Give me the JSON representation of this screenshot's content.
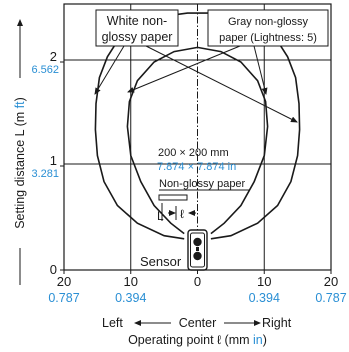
{
  "chart_data": {
    "type": "line",
    "xlabel": "Operating point ℓ (mm in)",
    "xlabel_parts": {
      "main": "Operating point ℓ (mm ",
      "unit": "in",
      "close": ")"
    },
    "ylabel": "Setting distance L (m ft)",
    "ylabel_parts": {
      "main": "Setting distance L (m ",
      "unit": "ft",
      "close": ")"
    },
    "xlim": [
      -20,
      20
    ],
    "ylim": [
      0,
      2.5
    ],
    "x_ticks": [
      {
        "value": -20,
        "label": "20",
        "label_in": "0.787"
      },
      {
        "value": -10,
        "label": "10",
        "label_in": "0.394"
      },
      {
        "value": 0,
        "label": "0",
        "label_in": ""
      },
      {
        "value": 10,
        "label": "10",
        "label_in": "0.394"
      },
      {
        "value": 20,
        "label": "20",
        "label_in": "0.787"
      }
    ],
    "y_ticks": [
      {
        "value": 0,
        "label": "0",
        "label_ft": ""
      },
      {
        "value": 1,
        "label": "1",
        "label_ft": "3.281"
      },
      {
        "value": 2,
        "label": "2",
        "label_ft": "6.562"
      }
    ],
    "direction_labels": {
      "left": "Left",
      "center": "Center",
      "right": "Right"
    },
    "series": [
      {
        "name": "White non-glossy paper",
        "x": [
          -2,
          -5,
          -9,
          -12,
          -14,
          -15,
          -15.3,
          -15.2,
          -14.7,
          -13.5,
          -11.5,
          -8.5,
          -5,
          -1.5,
          0,
          1.5,
          5,
          8.5,
          11.5,
          13.5,
          14.7,
          15.2,
          15.3,
          15,
          14,
          12,
          9,
          5,
          2
        ],
        "y": [
          0.3,
          0.33,
          0.45,
          0.62,
          0.85,
          1.1,
          1.35,
          1.6,
          1.85,
          2.05,
          2.25,
          2.38,
          2.44,
          2.47,
          2.47,
          2.47,
          2.44,
          2.38,
          2.25,
          2.05,
          1.85,
          1.6,
          1.35,
          1.1,
          0.85,
          0.62,
          0.45,
          0.33,
          0.3
        ]
      },
      {
        "name": "Gray non-glossy paper (Lightness: 5)",
        "x": [
          -2,
          -4,
          -6.5,
          -8.5,
          -10,
          -10.5,
          -10.2,
          -9,
          -6.5,
          -3.5,
          0,
          3.5,
          6.5,
          9,
          10.2,
          10.5,
          10,
          8.5,
          6.5,
          4,
          2
        ],
        "y": [
          0.35,
          0.45,
          0.62,
          0.85,
          1.1,
          1.38,
          1.62,
          1.82,
          2.0,
          2.1,
          2.14,
          2.1,
          2.0,
          1.82,
          1.62,
          1.38,
          1.1,
          0.85,
          0.62,
          0.45,
          0.35
        ]
      }
    ],
    "annotations": {
      "target_size_mm": "200 × 200 mm",
      "target_size_in": "7.874 × 7.874 in",
      "target_material": "Non-glossy paper",
      "dim_L": "L",
      "dim_l": "ℓ",
      "sensor": "Sensor",
      "legend_white": [
        "White non-",
        "glossy paper"
      ],
      "legend_gray": [
        "Gray non-glossy",
        "paper (Lightness: 5)"
      ]
    },
    "grid": true,
    "colors": {
      "line": "#1a1a1a",
      "imperial": "#2a8fd4"
    }
  }
}
